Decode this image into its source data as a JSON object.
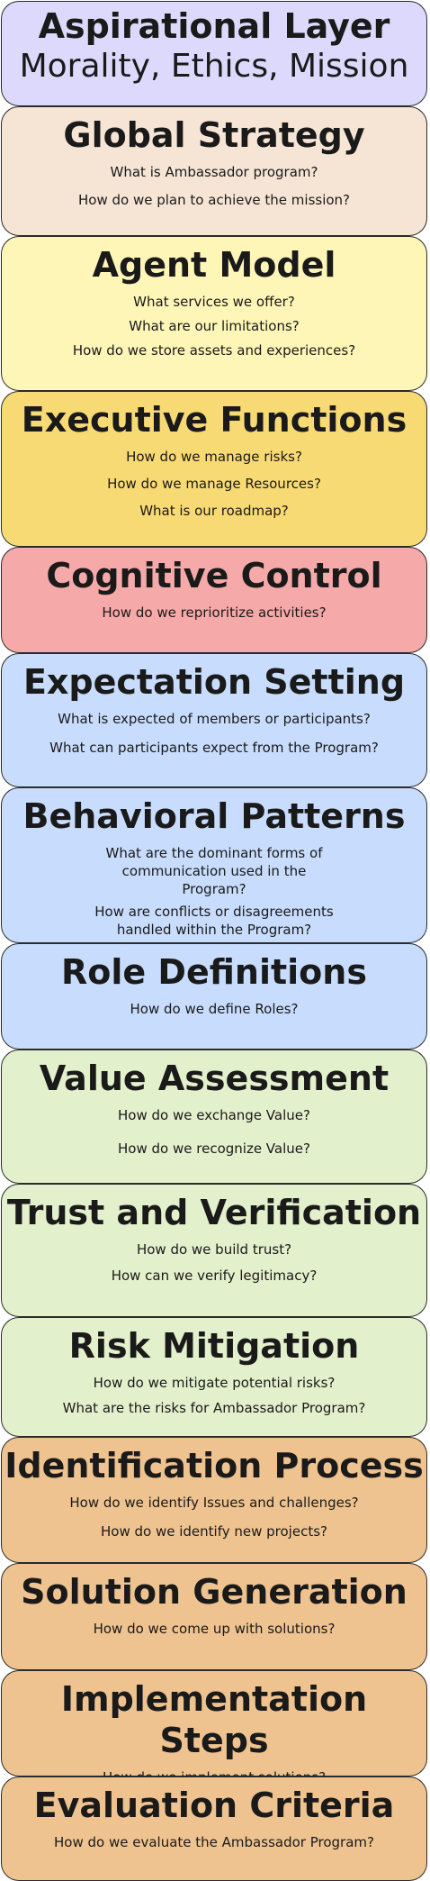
{
  "layers": [
    {
      "title": "Aspirational Layer",
      "subtitle": "Morality, Ethics, Mission",
      "color": "#dcd9fc",
      "questions": []
    },
    {
      "title": "Global Strategy",
      "color": "#f6e5d5",
      "questions": [
        "What is Ambassador program?",
        "How do we plan to achieve the mission?"
      ]
    },
    {
      "title": "Agent Model",
      "color": "#fef6b7",
      "questions": [
        "What services we offer?",
        "What are our limitations?",
        "How do we store assets and experiences?"
      ]
    },
    {
      "title": "Executive Functions",
      "color": "#f8da74",
      "questions": [
        "How do we manage risks?",
        "How do we manage Resources?",
        "What is our roadmap?"
      ]
    },
    {
      "title": "Cognitive Control",
      "color": "#f5a9a8",
      "questions": [
        "How do we reprioritize activities?"
      ]
    },
    {
      "title": "Expectation Setting",
      "color": "#c8dcfd",
      "questions": [
        "What is expected of members or participants?",
        "What can participants expect from the Program?"
      ]
    },
    {
      "title": "Behavioral Patterns",
      "color": "#c8dcfd",
      "questions": [
        "What are the dominant forms of communication used in the Program?",
        "How are conflicts or disagreements handled within the Program?"
      ]
    },
    {
      "title": "Role Definitions",
      "color": "#c8dcfd",
      "questions": [
        "How do we define Roles?"
      ]
    },
    {
      "title": "Value Assessment",
      "color": "#e3f0cc",
      "questions": [
        "How do we exchange Value?",
        "How do we recognize Value?"
      ]
    },
    {
      "title": "Trust and Verification",
      "color": "#e3f0cc",
      "questions": [
        "How do we build trust?",
        "How can we verify legitimacy?"
      ]
    },
    {
      "title": "Risk Mitigation",
      "color": "#e3f0cc",
      "questions": [
        "How do we mitigate potential risks?",
        "What are the risks for Ambassador Program?"
      ]
    },
    {
      "title": "Identification Process",
      "color": "#efc38f",
      "questions": [
        "How do we identify Issues and challenges?",
        "How do we identify new projects?"
      ]
    },
    {
      "title": "Solution Generation",
      "color": "#efc38f",
      "questions": [
        "How do we come up with solutions?"
      ]
    },
    {
      "title": "Implementation Steps",
      "color": "#efc38f",
      "questions": [
        "How do we implement solutions?"
      ]
    },
    {
      "title": "Evaluation Criteria",
      "color": "#efc38f",
      "questions": [
        "How do we evaluate the Ambassador Program?"
      ]
    }
  ]
}
